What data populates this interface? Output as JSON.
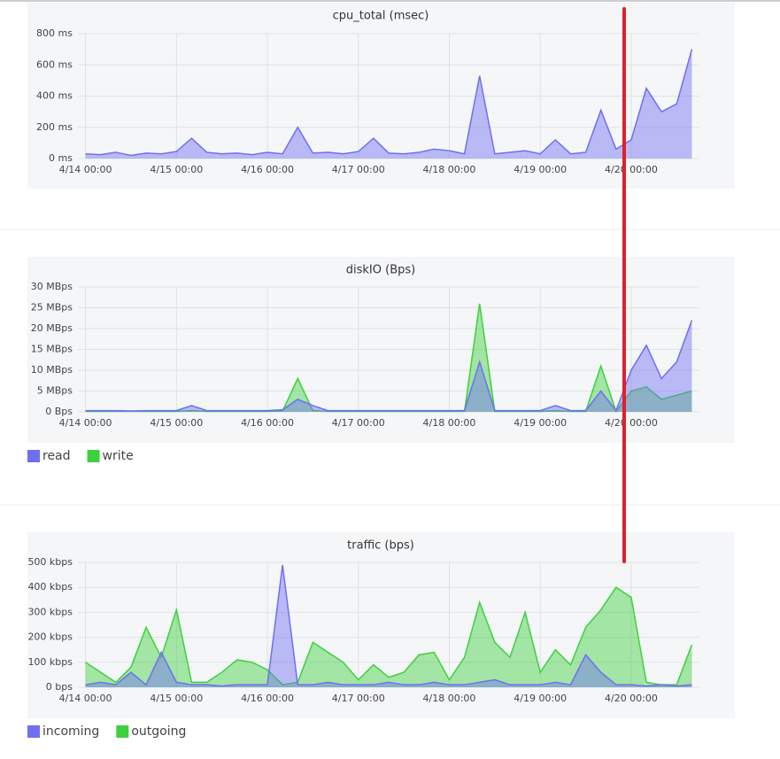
{
  "chart_data": [
    {
      "type": "area",
      "title": "cpu_total (msec)",
      "categories": [
        "4/14 00:00",
        null,
        null,
        null,
        null,
        null,
        "4/15 00:00",
        null,
        null,
        null,
        null,
        null,
        "4/16 00:00",
        null,
        null,
        null,
        null,
        null,
        "4/17 00:00",
        null,
        null,
        null,
        null,
        null,
        "4/18 00:00",
        null,
        null,
        null,
        null,
        null,
        "4/19 00:00",
        null,
        null,
        null,
        null,
        null,
        "4/20 00:00",
        null,
        null,
        null,
        null
      ],
      "values": [
        30,
        25,
        40,
        20,
        35,
        30,
        45,
        130,
        40,
        30,
        35,
        25,
        40,
        30,
        200,
        35,
        40,
        30,
        45,
        130,
        35,
        30,
        40,
        60,
        50,
        30,
        530,
        30,
        40,
        50,
        30,
        120,
        30,
        40,
        310,
        60,
        120,
        450,
        300,
        350,
        700
      ],
      "color": "#6f6ff2",
      "ylim": [
        0,
        800
      ],
      "yticks": [
        {
          "value": 0,
          "label": "0 ms"
        },
        {
          "value": 200,
          "label": "200 ms"
        },
        {
          "value": 400,
          "label": "400 ms"
        },
        {
          "value": 600,
          "label": "600 ms"
        },
        {
          "value": 800,
          "label": "800 ms"
        }
      ],
      "grid": true
    },
    {
      "type": "area",
      "title": "diskIO (Bps)",
      "categories": [
        "4/14 00:00",
        null,
        null,
        null,
        null,
        null,
        "4/15 00:00",
        null,
        null,
        null,
        null,
        null,
        "4/16 00:00",
        null,
        null,
        null,
        null,
        null,
        "4/17 00:00",
        null,
        null,
        null,
        null,
        null,
        "4/18 00:00",
        null,
        null,
        null,
        null,
        null,
        "4/19 00:00",
        null,
        null,
        null,
        null,
        null,
        "4/20 00:00",
        null,
        null,
        null,
        null
      ],
      "series": [
        {
          "name": "read",
          "color": "#6f6ff2",
          "values": [
            0.3,
            0.3,
            0.3,
            0.2,
            0.3,
            0.3,
            0.3,
            1.5,
            0.3,
            0.3,
            0.3,
            0.3,
            0.3,
            0.5,
            3,
            1.5,
            0.3,
            0.3,
            0.3,
            0.3,
            0.3,
            0.3,
            0.3,
            0.3,
            0.3,
            0.3,
            12,
            0.3,
            0.3,
            0.3,
            0.3,
            1.5,
            0.3,
            0.3,
            5,
            0.3,
            10,
            16,
            8,
            12,
            22
          ]
        },
        {
          "name": "write",
          "color": "#3ed13e",
          "values": [
            0.1,
            0.1,
            0.1,
            0.1,
            0.1,
            0.1,
            0.1,
            0.3,
            0.1,
            0.1,
            0.1,
            0.1,
            0.1,
            0.2,
            8,
            0.3,
            0.1,
            0.1,
            0.1,
            0.1,
            0.1,
            0.1,
            0.1,
            0.1,
            0.1,
            0.1,
            26,
            0.1,
            0.1,
            0.1,
            0.1,
            0.3,
            0.1,
            0.1,
            11,
            0.1,
            5,
            6,
            3,
            4,
            5
          ]
        }
      ],
      "ylim": [
        0,
        30
      ],
      "yticks": [
        {
          "value": 0,
          "label": "0 Bps"
        },
        {
          "value": 5,
          "label": "5 MBps"
        },
        {
          "value": 10,
          "label": "10 MBps"
        },
        {
          "value": 15,
          "label": "15 MBps"
        },
        {
          "value": 20,
          "label": "20 MBps"
        },
        {
          "value": 25,
          "label": "25 MBps"
        },
        {
          "value": 30,
          "label": "30 MBps"
        }
      ],
      "grid": true,
      "legend": "bottom-left"
    },
    {
      "type": "area",
      "title": "traffic (bps)",
      "categories": [
        "4/14 00:00",
        null,
        null,
        null,
        null,
        null,
        "4/15 00:00",
        null,
        null,
        null,
        null,
        null,
        "4/16 00:00",
        null,
        null,
        null,
        null,
        null,
        "4/17 00:00",
        null,
        null,
        null,
        null,
        null,
        "4/18 00:00",
        null,
        null,
        null,
        null,
        null,
        "4/19 00:00",
        null,
        null,
        null,
        null,
        null,
        "4/20 00:00",
        null,
        null,
        null,
        null
      ],
      "series": [
        {
          "name": "incoming",
          "color": "#6f6ff2",
          "values": [
            10,
            20,
            10,
            60,
            10,
            140,
            20,
            10,
            10,
            5,
            10,
            10,
            10,
            490,
            10,
            10,
            20,
            10,
            10,
            10,
            20,
            10,
            10,
            20,
            10,
            10,
            20,
            30,
            10,
            10,
            10,
            20,
            10,
            130,
            60,
            10,
            10,
            5,
            10,
            5,
            10
          ]
        },
        {
          "name": "outgoing",
          "color": "#3ed13e",
          "values": [
            100,
            60,
            20,
            80,
            240,
            120,
            310,
            20,
            20,
            60,
            110,
            100,
            70,
            10,
            20,
            180,
            140,
            100,
            30,
            90,
            40,
            60,
            130,
            140,
            30,
            120,
            340,
            180,
            120,
            300,
            60,
            150,
            90,
            240,
            310,
            400,
            360,
            20,
            10,
            10,
            170
          ]
        }
      ],
      "ylim": [
        0,
        500
      ],
      "yticks": [
        {
          "value": 0,
          "label": "0 bps"
        },
        {
          "value": 100,
          "label": "100 kbps"
        },
        {
          "value": 200,
          "label": "200 kbps"
        },
        {
          "value": 300,
          "label": "300 kbps"
        },
        {
          "value": 400,
          "label": "400 kbps"
        },
        {
          "value": 500,
          "label": "500 kbps"
        }
      ],
      "grid": true,
      "legend": "bottom-left"
    }
  ]
}
